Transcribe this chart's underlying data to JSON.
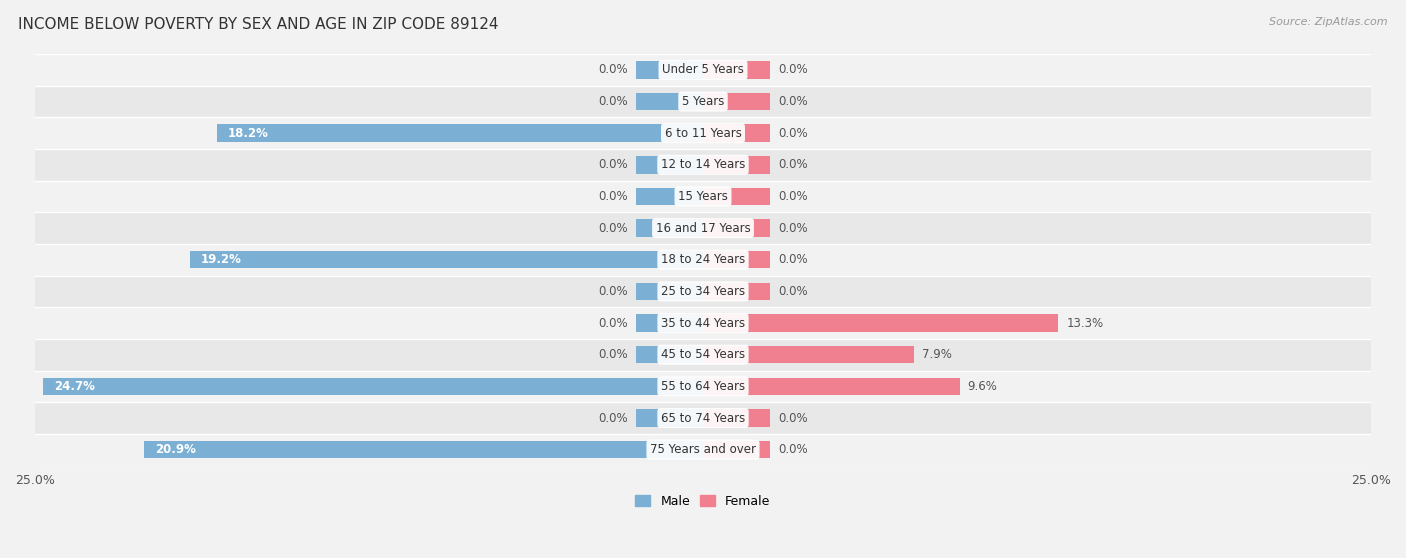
{
  "title": "INCOME BELOW POVERTY BY SEX AND AGE IN ZIP CODE 89124",
  "source": "Source: ZipAtlas.com",
  "categories": [
    "Under 5 Years",
    "5 Years",
    "6 to 11 Years",
    "12 to 14 Years",
    "15 Years",
    "16 and 17 Years",
    "18 to 24 Years",
    "25 to 34 Years",
    "35 to 44 Years",
    "45 to 54 Years",
    "55 to 64 Years",
    "65 to 74 Years",
    "75 Years and over"
  ],
  "male_values": [
    0.0,
    0.0,
    18.2,
    0.0,
    0.0,
    0.0,
    19.2,
    0.0,
    0.0,
    0.0,
    24.7,
    0.0,
    20.9
  ],
  "female_values": [
    0.0,
    0.0,
    0.0,
    0.0,
    0.0,
    0.0,
    0.0,
    0.0,
    13.3,
    7.9,
    9.6,
    0.0,
    0.0
  ],
  "male_color": "#7bafd4",
  "female_color": "#f08090",
  "male_label": "Male",
  "female_label": "Female",
  "xlim": 25.0,
  "stub_size": 2.5,
  "row_colors": [
    "#f2f2f2",
    "#e8e8e8"
  ],
  "title_fontsize": 11,
  "source_fontsize": 8,
  "label_fontsize": 8.5,
  "tick_fontsize": 9,
  "bar_height": 0.55,
  "value_color": "#555555",
  "white_label_color": "white",
  "category_label_fontsize": 8.5
}
